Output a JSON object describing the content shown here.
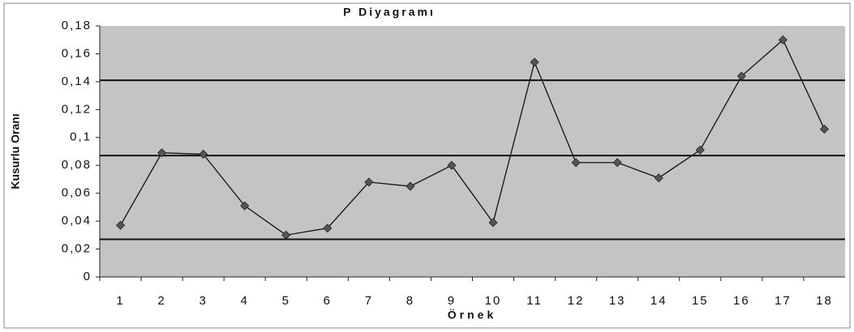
{
  "chart_data": {
    "type": "line",
    "title": "P Diyagramı",
    "x_label": "Örnek",
    "y_label": "Kusurlu Oranı",
    "categories": [
      "1",
      "2",
      "3",
      "4",
      "5",
      "6",
      "7",
      "8",
      "9",
      "10",
      "11",
      "12",
      "13",
      "14",
      "15",
      "16",
      "17",
      "18"
    ],
    "values": [
      0.037,
      0.089,
      0.088,
      0.051,
      0.03,
      0.035,
      0.068,
      0.065,
      0.08,
      0.039,
      0.154,
      0.082,
      0.082,
      0.071,
      0.091,
      0.144,
      0.17,
      0.106
    ],
    "color": "#555555",
    "control_lines": [
      0.141,
      0.087,
      0.027
    ],
    "ylim": [
      0,
      0.18
    ],
    "yticks": [
      0,
      {
        "value": 0.02,
        "label": "0,02"
      },
      {
        "value": 0.04,
        "label": "0,04"
      },
      {
        "value": 0.06,
        "label": "0,06"
      },
      {
        "value": 0.08,
        "label": "0,08"
      },
      {
        "value": 0.1,
        "label": "0,1"
      },
      {
        "value": 0.12,
        "label": "0,12"
      },
      {
        "value": 0.14,
        "label": "0,14"
      },
      {
        "value": 0.16,
        "label": "0,16"
      },
      {
        "value": 0.18,
        "label": "0,18"
      }
    ]
  }
}
